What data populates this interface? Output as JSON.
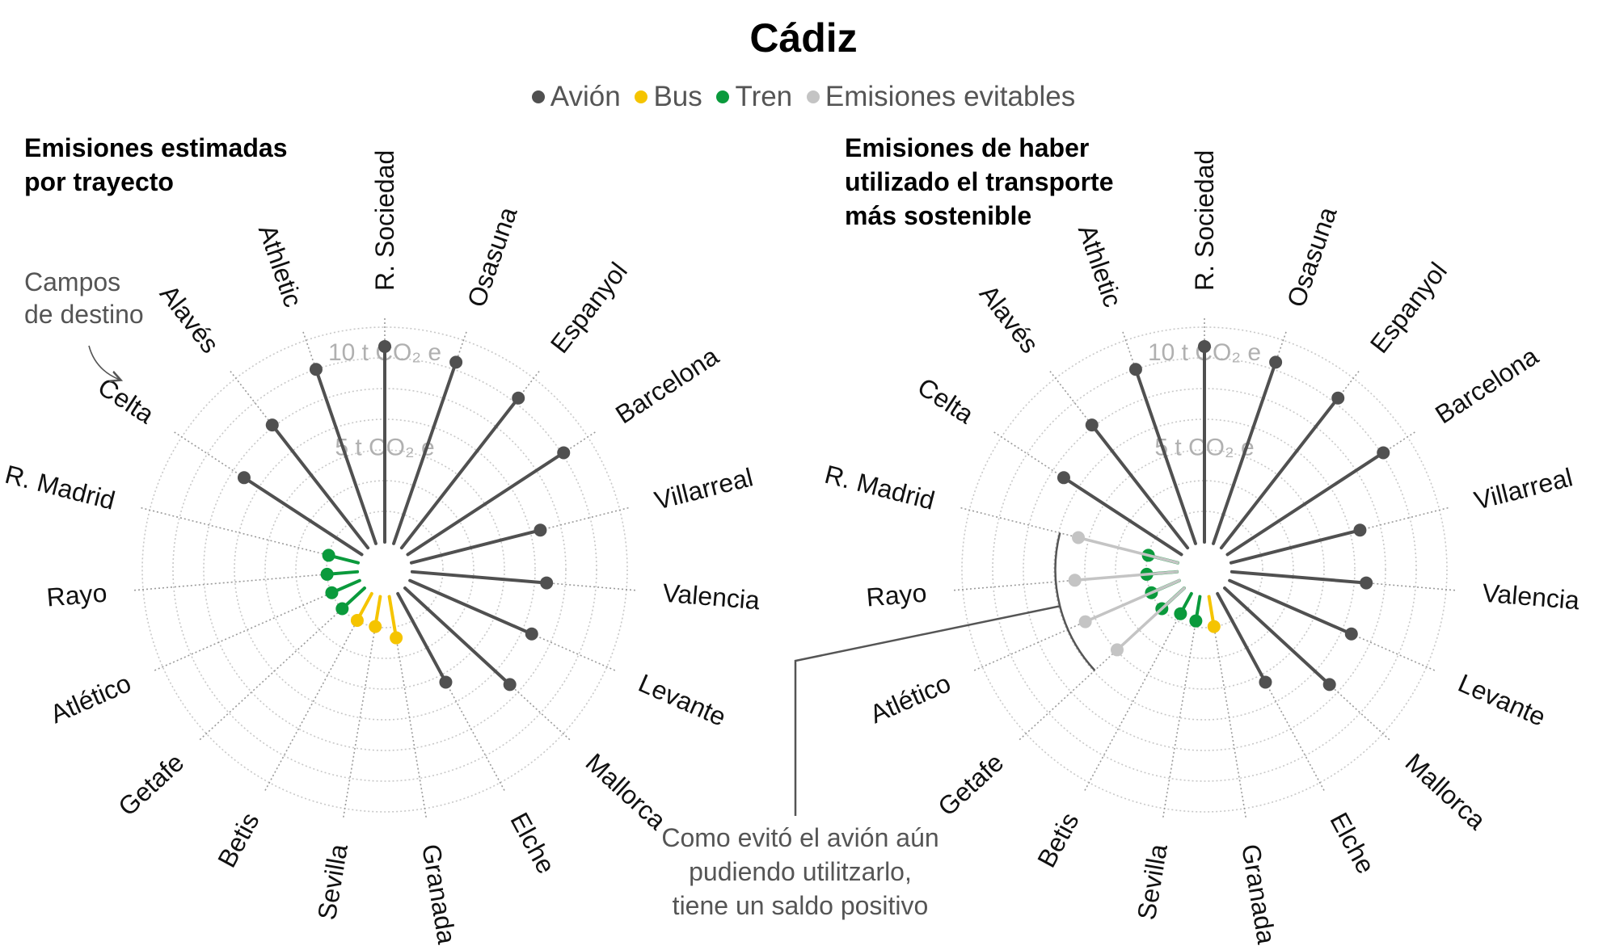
{
  "title": "Cádiz",
  "legend": [
    {
      "label": "Avión",
      "color": "#505050"
    },
    {
      "label": "Bus",
      "color": "#f5c400"
    },
    {
      "label": "Tren",
      "color": "#0a9a3c"
    },
    {
      "label": "Emisiones evitables",
      "color": "#c4c4c4"
    }
  ],
  "panel_titles": [
    "Emisiones estimadas\npor trayecto",
    "Emisiones de haber\nutilizado el transporte\nmás sostenible"
  ],
  "ring_labels": [
    "5 t CO₂ e",
    "10 t CO₂ e"
  ],
  "annotations": {
    "destinations": "Campos\nde destino",
    "avoided": "Como evitó el avión aún\npudiendo utilitzarlo,\ntiene un saldo positivo"
  },
  "chart_data": [
    {
      "type": "radial-lollipop",
      "title": "Emisiones estimadas por trayecto",
      "unit": "t CO2 e",
      "rlim": [
        0,
        14
      ],
      "rings": [
        5,
        10
      ],
      "categories": [
        "R. Sociedad",
        "Osasuna",
        "Espanyol",
        "Barcelona",
        "Villarreal",
        "Valencia",
        "Levante",
        "Mallorca",
        "Elche",
        "Granada",
        "Sevilla",
        "Betis",
        "Getafe",
        "Atlético",
        "Rayo",
        "R. Madrid",
        "Celta",
        "Alavés",
        "Athletic"
      ],
      "series": [
        {
          "name": "Avión",
          "color": "#505050",
          "points": [
            {
              "team": "R. Sociedad",
              "value": 10.3
            },
            {
              "team": "Osasuna",
              "value": 10.1
            },
            {
              "team": "Espanyol",
              "value": 10.0
            },
            {
              "team": "Barcelona",
              "value": 9.8
            },
            {
              "team": "Villarreal",
              "value": 7.0
            },
            {
              "team": "Valencia",
              "value": 7.1
            },
            {
              "team": "Levante",
              "value": 7.0
            },
            {
              "team": "Mallorca",
              "value": 7.5
            },
            {
              "team": "Elche",
              "value": 5.3
            },
            {
              "team": "Celta",
              "value": 7.4
            },
            {
              "team": "Alavés",
              "value": 8.2
            },
            {
              "team": "Athletic",
              "value": 9.7
            }
          ]
        },
        {
          "name": "Bus",
          "color": "#f5c400",
          "points": [
            {
              "team": "Granada",
              "value": 2.2
            },
            {
              "team": "Sevilla",
              "value": 1.6
            },
            {
              "team": "Betis",
              "value": 1.6
            }
          ]
        },
        {
          "name": "Tren",
          "color": "#0a9a3c",
          "points": [
            {
              "team": "Getafe",
              "value": 1.6
            },
            {
              "team": "Atlético",
              "value": 1.6
            },
            {
              "team": "Rayo",
              "value": 1.6
            },
            {
              "team": "R. Madrid",
              "value": 1.6
            }
          ]
        }
      ]
    },
    {
      "type": "radial-lollipop",
      "title": "Emisiones de haber utilizado el transporte más sostenible",
      "unit": "t CO2 e",
      "rlim": [
        0,
        14
      ],
      "rings": [
        5,
        10
      ],
      "categories": [
        "R. Sociedad",
        "Osasuna",
        "Espanyol",
        "Barcelona",
        "Villarreal",
        "Valencia",
        "Levante",
        "Mallorca",
        "Elche",
        "Granada",
        "Sevilla",
        "Betis",
        "Getafe",
        "Atlético",
        "Rayo",
        "R. Madrid",
        "Celta",
        "Alavés",
        "Athletic"
      ],
      "series": [
        {
          "name": "Avión",
          "color": "#505050",
          "points": [
            {
              "team": "R. Sociedad",
              "value": 10.3
            },
            {
              "team": "Osasuna",
              "value": 10.1
            },
            {
              "team": "Espanyol",
              "value": 10.0
            },
            {
              "team": "Barcelona",
              "value": 9.8
            },
            {
              "team": "Villarreal",
              "value": 7.0
            },
            {
              "team": "Valencia",
              "value": 7.1
            },
            {
              "team": "Levante",
              "value": 7.0
            },
            {
              "team": "Mallorca",
              "value": 7.5
            },
            {
              "team": "Elche",
              "value": 5.3
            },
            {
              "team": "Celta",
              "value": 7.4
            },
            {
              "team": "Alavés",
              "value": 8.2
            },
            {
              "team": "Athletic",
              "value": 9.7
            }
          ]
        },
        {
          "name": "Bus",
          "color": "#f5c400",
          "points": [
            {
              "team": "Granada",
              "value": 1.6
            }
          ]
        },
        {
          "name": "Tren",
          "color": "#0a9a3c",
          "points": [
            {
              "team": "Sevilla",
              "value": 1.3
            },
            {
              "team": "Betis",
              "value": 1.2
            },
            {
              "team": "Getafe",
              "value": 1.6
            },
            {
              "team": "Atlético",
              "value": 1.6
            },
            {
              "team": "Rayo",
              "value": 1.6
            },
            {
              "team": "R. Madrid",
              "value": 1.6
            }
          ]
        },
        {
          "name": "Emisiones evitables",
          "color": "#c4c4c4",
          "points": [
            {
              "team": "Getafe",
              "value": 4.8
            },
            {
              "team": "Atlético",
              "value": 5.4
            },
            {
              "team": "Rayo",
              "value": 5.4
            },
            {
              "team": "R. Madrid",
              "value": 5.4
            }
          ]
        }
      ]
    }
  ]
}
